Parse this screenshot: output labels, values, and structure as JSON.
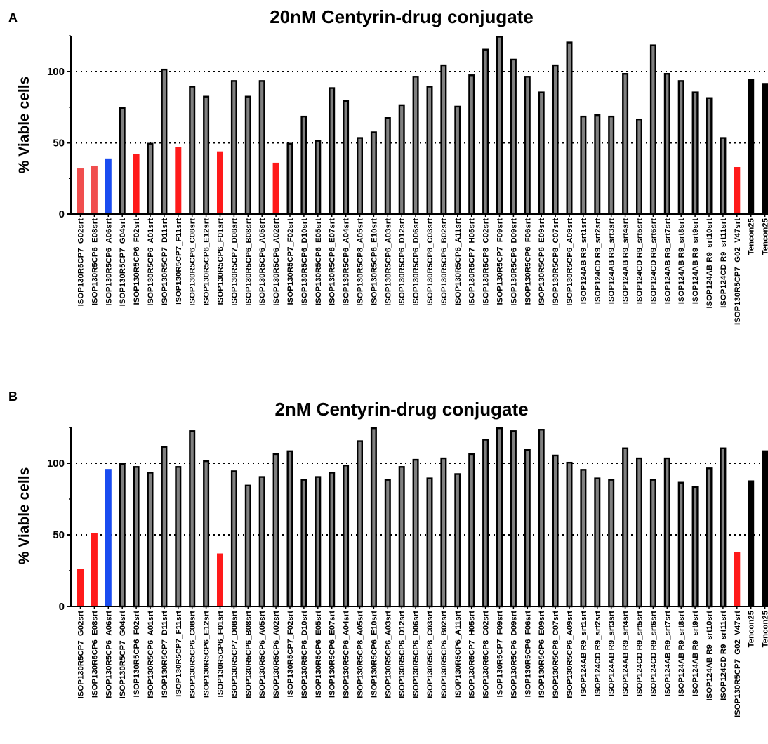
{
  "chart_data": [
    {
      "panel": "A",
      "type": "bar",
      "title": "20nM Centyrin-drug conjugate",
      "ylabel": "% Viable cells",
      "xlabel": "",
      "ylim": [
        0,
        125
      ],
      "yticks": [
        0,
        50,
        100
      ],
      "reference_lines": [
        50,
        100
      ],
      "grid": false,
      "categories": [
        "ISOP130R5CP7_G02srt",
        "ISOP130R5CP6_E08srt",
        "ISOP130R5CP6_A06srt",
        "ISOP130R5CP7_G04srt",
        "ISOP130R5CP6_F02srt",
        "ISOP130R5CP6_A01srt",
        "ISOP130R5CP7_D11srt",
        "ISOP130R5CP7_F11srt",
        "ISOP130R5CP6_C08srt",
        "ISOP130R5CP6_E12srt",
        "ISOP130R5CP6_F01srt",
        "ISOP130R5CP7_D08srt",
        "ISOP130R5CP6_B08srt",
        "ISOP130R5CP6_A05srt",
        "ISOP130R5CP6_A02srt",
        "ISOP130R5CP7_F02srt",
        "ISOP130R5CP6_D10srt",
        "ISOP130R5CP6_E05srt",
        "ISOP130R5CP6_E07srt",
        "ISOP130R5CP6_A04srt",
        "ISOP130R5CP8_A05srt",
        "ISOP130R5CP6_E10srt",
        "ISOP130R5CP6_A03srt",
        "ISOP130R5CP6_D12srt",
        "ISOP130R5CP6_D06srt",
        "ISOP130R5CP8_C03srt",
        "ISOP130R5CP6_B02srt",
        "ISOP130R5CP6_A11srt",
        "ISOP130R5CP7_H05srt",
        "ISOP130R5CP8_C02srt",
        "ISOP130R5CP7_F09srt",
        "ISOP130R5CP6_D09srt",
        "ISOP130R5CP6_F06srt",
        "ISOP130R5CP6_E09srt",
        "ISOP130R5CP8_C07srt",
        "ISOP130R5CP6_A09srt",
        "ISOP124AB R9_srt1srt",
        "ISOP124CD R9_srt2srt",
        "ISOP124AB R9_srt3srt",
        "ISOP124AB R9_srt4srt",
        "ISOP124CD R9_srt5srt",
        "ISOP124CD R9_srt6srt",
        "ISOP124AB R9_srt7srt",
        "ISOP124AB R9_srt8srt",
        "ISOP124AB R9_srt9srt",
        "ISOP124AB R9_srt10srt",
        "ISOP124CD R9_srt11srt",
        "ISOP130R5CP7_G02_V47srt",
        "Tencon25",
        "Tencon25"
      ],
      "values": [
        32,
        34,
        39,
        75,
        42,
        50,
        102,
        47,
        90,
        83,
        44,
        94,
        83,
        94,
        36,
        50,
        69,
        52,
        89,
        80,
        54,
        58,
        68,
        77,
        97,
        90,
        105,
        76,
        98,
        116,
        127,
        109,
        97,
        86,
        105,
        121,
        69,
        70,
        69,
        99,
        67,
        119,
        99,
        94,
        86,
        82,
        54,
        33,
        95,
        92
      ],
      "bar_styles": [
        "red-light",
        "red-light",
        "blue",
        "outline",
        "red",
        "outline",
        "outline",
        "red",
        "outline",
        "outline",
        "red",
        "outline",
        "outline",
        "outline",
        "red",
        "outline",
        "outline",
        "outline",
        "outline",
        "outline",
        "outline",
        "outline",
        "outline",
        "outline",
        "outline",
        "outline",
        "outline",
        "outline",
        "outline",
        "outline",
        "outline",
        "outline",
        "outline",
        "outline",
        "outline",
        "outline",
        "outline",
        "outline",
        "outline",
        "outline",
        "outline",
        "outline",
        "outline",
        "outline",
        "outline",
        "outline",
        "outline",
        "red",
        "black",
        "black"
      ]
    },
    {
      "panel": "B",
      "type": "bar",
      "title": "2nM Centyrin-drug conjugate",
      "ylabel": "% Viable cells",
      "xlabel": "",
      "ylim": [
        0,
        125
      ],
      "yticks": [
        0,
        50,
        100
      ],
      "reference_lines": [
        50,
        100
      ],
      "grid": false,
      "categories": [
        "ISOP130R5CP7_G02srt",
        "ISOP130R5CP6_E08srt",
        "ISOP130R5CP6_A06srt",
        "ISOP130R5CP7_G04srt",
        "ISOP130R5CP6_F02srt",
        "ISOP130R5CP6_A01srt",
        "ISOP130R5CP7_D11srt",
        "ISOP130R5CP7_F11srt",
        "ISOP130R5CP6_C08srt",
        "ISOP130R5CP6_E12srt",
        "ISOP130R5CP6_F01srt",
        "ISOP130R5CP7_D08srt",
        "ISOP130R5CP6_B08srt",
        "ISOP130R5CP6_A05srt",
        "ISOP130R5CP6_A02srt",
        "ISOP130R5CP7_F02srt",
        "ISOP130R5CP6_D10srt",
        "ISOP130R5CP6_E05srt",
        "ISOP130R5CP6_E07srt",
        "ISOP130R5CP6_A04srt",
        "ISOP130R5CP8_A05srt",
        "ISOP130R5CP6_E10srt",
        "ISOP130R5CP6_A03srt",
        "ISOP130R5CP6_D12srt",
        "ISOP130R5CP6_D06srt",
        "ISOP130R5CP8_C03srt",
        "ISOP130R5CP6_B02srt",
        "ISOP130R5CP6_A11srt",
        "ISOP130R5CP7_H05srt",
        "ISOP130R5CP8_C02srt",
        "ISOP130R5CP7_F09srt",
        "ISOP130R5CP6_D09srt",
        "ISOP130R5CP6_F06srt",
        "ISOP130R5CP6_E09srt",
        "ISOP130R5CP8_C07srt",
        "ISOP130R5CP6_A09srt",
        "ISOP124AB R9_srt1srt",
        "ISOP124CD R9_srt2srt",
        "ISOP124AB R9_srt3srt",
        "ISOP124AB R9_srt4srt",
        "ISOP124CD R9_srt5srt",
        "ISOP124CD R9_srt6srt",
        "ISOP124AB R9_srt7srt",
        "ISOP124AB R9_srt8srt",
        "ISOP124AB R9_srt9srt",
        "ISOP124AB R9_srt10srt",
        "ISOP124CD R9_srt11srt",
        "ISOP130R5CP7_G02_V47srt",
        "Tencon25",
        "Tencon25"
      ],
      "values": [
        26,
        51,
        96,
        100,
        98,
        94,
        112,
        98,
        123,
        102,
        37,
        95,
        85,
        91,
        107,
        109,
        89,
        91,
        94,
        99,
        116,
        127,
        89,
        98,
        103,
        90,
        104,
        93,
        107,
        117,
        127,
        123,
        110,
        124,
        106,
        101,
        96,
        90,
        89,
        111,
        104,
        89,
        104,
        87,
        84,
        97,
        111,
        38,
        88,
        109
      ],
      "bar_styles": [
        "red",
        "red",
        "blue",
        "outline",
        "outline",
        "outline",
        "outline",
        "outline",
        "outline",
        "outline",
        "red",
        "outline",
        "outline",
        "outline",
        "outline",
        "outline",
        "outline",
        "outline",
        "outline",
        "outline",
        "outline",
        "outline",
        "outline",
        "outline",
        "outline",
        "outline",
        "outline",
        "outline",
        "outline",
        "outline",
        "outline",
        "outline",
        "outline",
        "outline",
        "outline",
        "outline",
        "outline",
        "outline",
        "outline",
        "outline",
        "outline",
        "outline",
        "outline",
        "outline",
        "outline",
        "outline",
        "outline",
        "red",
        "black",
        "black"
      ]
    }
  ],
  "colors": {
    "red": "#ff1a1a",
    "red_light": "#f04e4e",
    "blue": "#1a4cf0",
    "outline_stroke": "#000000",
    "outline_fill": "#808080",
    "black": "#000000"
  }
}
